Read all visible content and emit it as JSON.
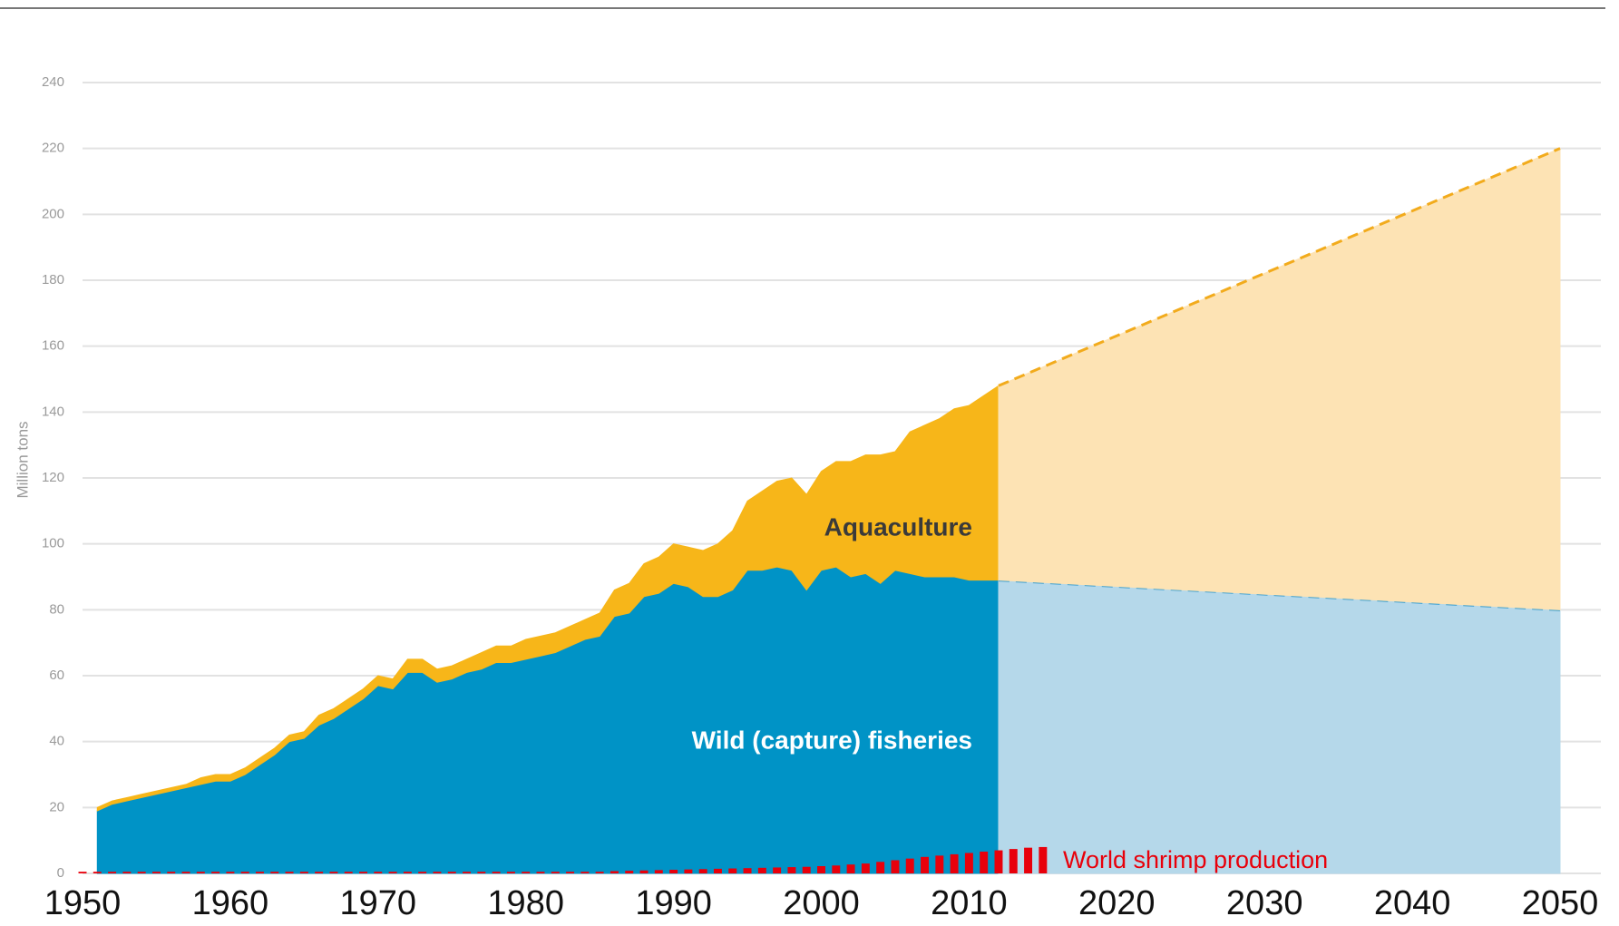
{
  "chart_data": {
    "type": "area",
    "stacked": true,
    "ylabel": "Million tons",
    "xlim": [
      1950,
      2050
    ],
    "xticks": [
      1950,
      1960,
      1970,
      1980,
      1990,
      2000,
      2010,
      2020,
      2030,
      2040,
      2050
    ],
    "ylim": [
      0,
      240
    ],
    "yticks": [
      0,
      20,
      40,
      60,
      80,
      100,
      120,
      140,
      160,
      180,
      200,
      220,
      240
    ],
    "grid": true,
    "series": [
      {
        "name": "Wild (capture) fisheries",
        "color": "#0093c6",
        "x": [
          1951,
          1952,
          1953,
          1954,
          1955,
          1956,
          1957,
          1958,
          1959,
          1960,
          1961,
          1962,
          1963,
          1964,
          1965,
          1966,
          1967,
          1968,
          1969,
          1970,
          1971,
          1972,
          1973,
          1974,
          1975,
          1976,
          1977,
          1978,
          1979,
          1980,
          1981,
          1982,
          1983,
          1984,
          1985,
          1986,
          1987,
          1988,
          1989,
          1990,
          1991,
          1992,
          1993,
          1994,
          1995,
          1996,
          1997,
          1998,
          1999,
          2000,
          2001,
          2002,
          2003,
          2004,
          2005,
          2006,
          2007,
          2008,
          2009,
          2010,
          2011,
          2012
        ],
        "values": [
          19,
          21,
          22,
          23,
          24,
          25,
          26,
          27,
          28,
          28,
          30,
          33,
          36,
          40,
          41,
          45,
          47,
          50,
          53,
          57,
          56,
          61,
          61,
          58,
          59,
          61,
          62,
          64,
          64,
          65,
          66,
          67,
          69,
          71,
          72,
          78,
          79,
          84,
          85,
          88,
          87,
          84,
          84,
          86,
          92,
          92,
          93,
          92,
          86,
          92,
          93,
          90,
          91,
          88,
          92,
          91,
          90,
          90,
          90,
          89,
          89,
          89
        ]
      },
      {
        "name": "Aquaculture",
        "color": "#f7b619",
        "x": [
          1951,
          1952,
          1953,
          1954,
          1955,
          1956,
          1957,
          1958,
          1959,
          1960,
          1961,
          1962,
          1963,
          1964,
          1965,
          1966,
          1967,
          1968,
          1969,
          1970,
          1971,
          1972,
          1973,
          1974,
          1975,
          1976,
          1977,
          1978,
          1979,
          1980,
          1981,
          1982,
          1983,
          1984,
          1985,
          1986,
          1987,
          1988,
          1989,
          1990,
          1991,
          1992,
          1993,
          1994,
          1995,
          1996,
          1997,
          1998,
          1999,
          2000,
          2001,
          2002,
          2003,
          2004,
          2005,
          2006,
          2007,
          2008,
          2009,
          2010,
          2011,
          2012
        ],
        "values": [
          1,
          1,
          1,
          1,
          1,
          1,
          1,
          2,
          2,
          2,
          2,
          2,
          2,
          2,
          2,
          3,
          3,
          3,
          3,
          3,
          3,
          4,
          4,
          4,
          4,
          4,
          5,
          5,
          5,
          6,
          6,
          6,
          6,
          6,
          7,
          8,
          9,
          10,
          11,
          12,
          12,
          14,
          16,
          18,
          21,
          24,
          26,
          28,
          29,
          30,
          32,
          35,
          36,
          39,
          36,
          43,
          46,
          48,
          51,
          53,
          56,
          59
        ]
      },
      {
        "color": "#b5d8ea",
        "line_color": "#3da0d0",
        "line_style": "dashed",
        "x": [
          2012,
          2050
        ],
        "values": [
          89,
          80
        ]
      },
      {
        "color": "#fde3b4",
        "line_color": "#f2ab1c",
        "line_style": "dashed",
        "x": [
          2012,
          2050
        ],
        "values": [
          59,
          140
        ]
      },
      {
        "name": "World shrimp production",
        "type": "bar",
        "color": "#e8000b",
        "x": [
          1950,
          1951,
          1952,
          1953,
          1954,
          1955,
          1956,
          1957,
          1958,
          1959,
          1960,
          1961,
          1962,
          1963,
          1964,
          1965,
          1966,
          1967,
          1968,
          1969,
          1970,
          1971,
          1972,
          1973,
          1974,
          1975,
          1976,
          1977,
          1978,
          1979,
          1980,
          1981,
          1982,
          1983,
          1984,
          1985,
          1986,
          1987,
          1988,
          1989,
          1990,
          1991,
          1992,
          1993,
          1994,
          1995,
          1996,
          1997,
          1998,
          1999,
          2000,
          2001,
          2002,
          2003,
          2004,
          2005,
          2006,
          2007,
          2008,
          2009,
          2010,
          2011,
          2012,
          2013,
          2014,
          2015
        ],
        "values": [
          0.5,
          0.5,
          0.5,
          0.5,
          0.5,
          0.5,
          0.5,
          0.5,
          0.5,
          0.5,
          0.5,
          0.5,
          0.5,
          0.5,
          0.5,
          0.5,
          0.5,
          0.5,
          0.5,
          0.5,
          0.5,
          0.5,
          0.5,
          0.5,
          0.5,
          0.5,
          0.5,
          0.5,
          0.5,
          0.5,
          0.5,
          0.5,
          0.5,
          0.5,
          0.5,
          0.5,
          0.7,
          0.8,
          0.9,
          1.0,
          1.1,
          1.2,
          1.3,
          1.4,
          1.5,
          1.6,
          1.7,
          1.8,
          1.9,
          2.0,
          2.2,
          2.4,
          2.7,
          3.0,
          3.5,
          4.0,
          4.5,
          5.0,
          5.4,
          5.8,
          6.2,
          6.6,
          7.0,
          7.4,
          7.8,
          8.0
        ]
      }
    ]
  }
}
